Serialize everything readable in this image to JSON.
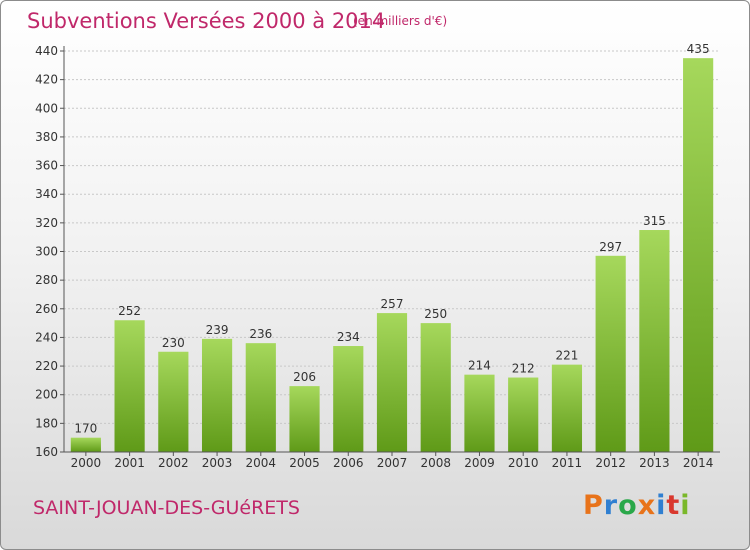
{
  "header": {
    "title": "Subventions Versées 2000 à 2014",
    "subtitle": "(en milliers d'€)"
  },
  "footer": {
    "commune": "SAINT-JOUAN-DES-GUéRETS",
    "logo_text": "Proxiti",
    "logo_colors": [
      "#e8731a",
      "#2f7fd1",
      "#2aa84a",
      "#e8731a",
      "#2f7fd1",
      "#d9382e",
      "#7ab82a"
    ]
  },
  "colors": {
    "title": "#c0286a",
    "bar_light": "#a6d85c",
    "bar_dark": "#5f9a18",
    "grid": "#c8c8c8",
    "axis": "#555555"
  },
  "chart_data": {
    "type": "bar",
    "title": "Subventions Versées 2000 à 2014",
    "subtitle": "(en milliers d'€)",
    "xlabel": "",
    "ylabel": "",
    "categories": [
      "2000",
      "2001",
      "2002",
      "2003",
      "2004",
      "2005",
      "2006",
      "2007",
      "2008",
      "2009",
      "2010",
      "2011",
      "2012",
      "2013",
      "2014"
    ],
    "values": [
      170,
      252,
      230,
      239,
      236,
      206,
      234,
      257,
      250,
      214,
      212,
      221,
      297,
      315,
      435
    ],
    "ylim": [
      160,
      440
    ],
    "yticks": [
      160,
      180,
      200,
      220,
      240,
      260,
      280,
      300,
      320,
      340,
      360,
      380,
      400,
      420,
      440
    ],
    "grid": true,
    "data_labels": true
  }
}
